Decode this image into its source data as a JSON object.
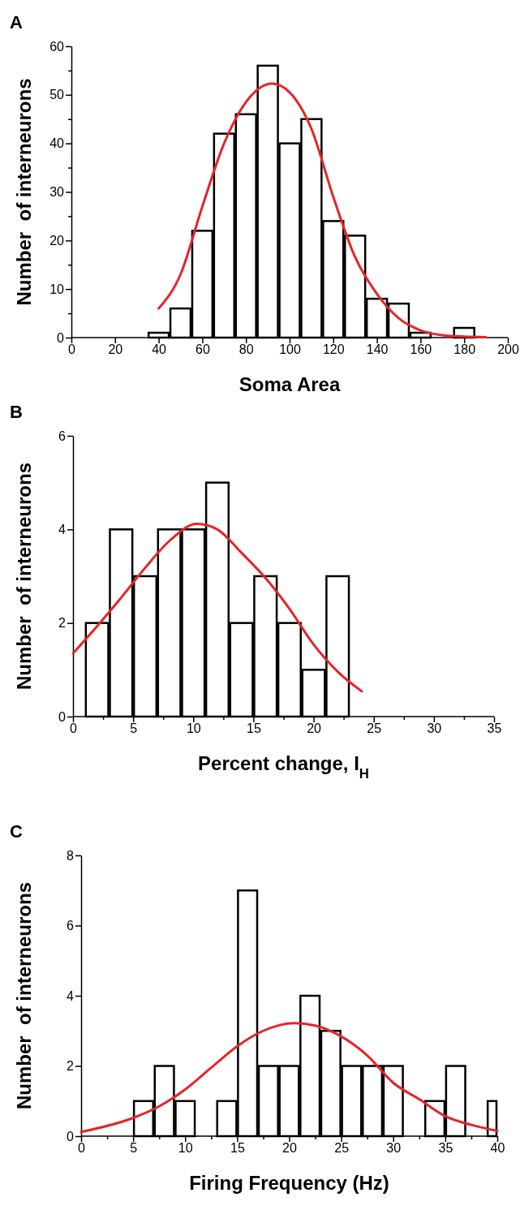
{
  "chart_data": [
    {
      "type": "histogram",
      "title": "A",
      "xlabel": "Soma Area",
      "ylabel": "Number  of interneurons",
      "bins": [
        35,
        45,
        55,
        65,
        75,
        85,
        95,
        105,
        115,
        125,
        135,
        145,
        155,
        165,
        175,
        185
      ],
      "series": [
        {
          "color": "#ffffff",
          "values": [
            1,
            6,
            22,
            42,
            46,
            56,
            40,
            45,
            24,
            21,
            8,
            7,
            1,
            0,
            2
          ]
        },
        {
          "type": "line",
          "color": "#e3262a",
          "x": [
            40,
            50,
            60,
            70,
            80,
            92,
            100,
            110,
            120,
            130,
            140,
            150,
            160,
            170,
            180,
            190
          ],
          "values": [
            6,
            13,
            27,
            40,
            48.5,
            52.3,
            50.5,
            43,
            29,
            16.6,
            9,
            4,
            1.5,
            0.5,
            0.2,
            0.1
          ]
        }
      ],
      "xlim": [
        0,
        200
      ],
      "xticks": [
        0,
        20,
        40,
        60,
        80,
        100,
        120,
        140,
        160,
        180,
        200
      ],
      "ylim": [
        0,
        60
      ],
      "yticks": [
        0,
        {
          "value": 5,
          "label": null
        },
        10,
        {
          "value": 15,
          "label": null
        },
        20,
        {
          "value": 25,
          "label": null
        },
        30,
        {
          "value": 35,
          "label": null
        },
        40,
        {
          "value": 45,
          "label": null
        },
        50,
        {
          "value": 55,
          "label": null
        },
        60
      ]
    },
    {
      "type": "histogram",
      "title": "B",
      "xlabel": "Percent change, I$_{H}$",
      "ylabel": "Number  of interneurons",
      "bins": [
        1,
        3,
        5,
        7,
        9,
        11,
        13,
        15,
        17,
        19,
        21,
        23
      ],
      "series": [
        {
          "color": "#ffffff",
          "values": [
            2,
            4,
            3,
            4,
            4,
            5,
            2,
            3,
            2,
            1,
            3
          ]
        },
        {
          "type": "line",
          "color": "#e3262a",
          "x": [
            0,
            2,
            4,
            6,
            8,
            10.3,
            12,
            14,
            16,
            18,
            20,
            22,
            24
          ],
          "values": [
            1.35,
            1.93,
            2.54,
            3.18,
            3.75,
            4.12,
            4.0,
            3.5,
            2.96,
            2.3,
            1.54,
            0.96,
            0.54
          ]
        }
      ],
      "xlim": [
        0,
        35
      ],
      "xticks": [
        0,
        {
          "value": 2.5,
          "label": null
        },
        5,
        {
          "value": 7.5,
          "label": null
        },
        10,
        {
          "value": 12.5,
          "label": null
        },
        15,
        {
          "value": 17.5,
          "label": null
        },
        20,
        {
          "value": 22.5,
          "label": null
        },
        25,
        {
          "value": 27.5,
          "label": null
        },
        30,
        {
          "value": 32.5,
          "label": null
        },
        35
      ],
      "ylim": [
        0,
        6
      ],
      "yticks": [
        0,
        2,
        4,
        6
      ]
    },
    {
      "type": "histogram",
      "title": "C",
      "xlabel": "Firing Frequency (Hz)",
      "ylabel": "Number  of interneurons",
      "bins": [
        5,
        7,
        9,
        11,
        13,
        15,
        17,
        19,
        21,
        23,
        25,
        27,
        29,
        31,
        33,
        35,
        37,
        39,
        40
      ],
      "series": [
        {
          "color": "#ffffff",
          "values": [
            1,
            2,
            1,
            0,
            1,
            7,
            2,
            2,
            4,
            3,
            2,
            2,
            2,
            0,
            1,
            2,
            0,
            1
          ]
        },
        {
          "type": "line",
          "color": "#e3262a",
          "x": [
            0,
            5,
            7.5,
            10,
            12.5,
            15,
            17.5,
            20.5,
            22.5,
            25,
            27.5,
            30,
            32.5,
            35,
            37.5,
            40
          ],
          "values": [
            0.12,
            0.52,
            0.85,
            1.33,
            1.95,
            2.56,
            3.0,
            3.22,
            3.15,
            2.84,
            2.3,
            1.52,
            1.05,
            0.57,
            0.32,
            0.15
          ]
        }
      ],
      "xlim": [
        0,
        40
      ],
      "xticks": [
        0,
        {
          "value": 2.5,
          "label": null
        },
        5,
        {
          "value": 7.5,
          "label": null
        },
        10,
        {
          "value": 12.5,
          "label": null
        },
        15,
        {
          "value": 17.5,
          "label": null
        },
        20,
        {
          "value": 22.5,
          "label": null
        },
        25,
        {
          "value": 27.5,
          "label": null
        },
        30,
        {
          "value": 32.5,
          "label": null
        },
        35,
        {
          "value": 37.5,
          "label": null
        },
        40
      ],
      "ylim": [
        0,
        8
      ],
      "yticks": [
        0,
        2,
        4,
        6,
        8
      ]
    }
  ]
}
